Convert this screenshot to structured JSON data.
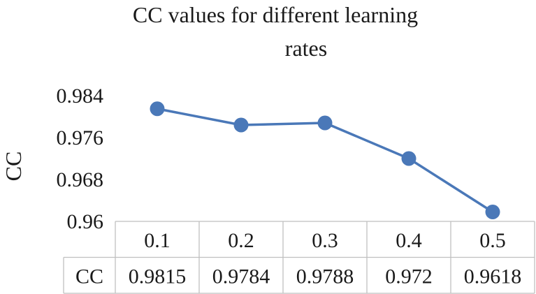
{
  "chart_data": {
    "type": "line",
    "title_line1": "CC values for different learning",
    "title_line2": "rates",
    "title": "CC values for different learning rates",
    "xlabel": "",
    "ylabel": "CC",
    "categories": [
      "0.1",
      "0.2",
      "0.3",
      "0.4",
      "0.5"
    ],
    "series": [
      {
        "name": "CC",
        "values": [
          0.9815,
          0.9784,
          0.9788,
          0.972,
          0.9618
        ],
        "value_labels": [
          "0.9815",
          "0.9784",
          "0.9788",
          "0.972",
          "0.9618"
        ]
      }
    ],
    "ylim": [
      0.96,
      0.984
    ],
    "yticks": [
      0.96,
      0.968,
      0.976,
      0.984
    ],
    "ytick_labels": [
      "0.96",
      "0.968",
      "0.976",
      "0.984"
    ],
    "grid": false,
    "legend": "data-table",
    "data_table": true,
    "series_color": "#4a78b8"
  }
}
